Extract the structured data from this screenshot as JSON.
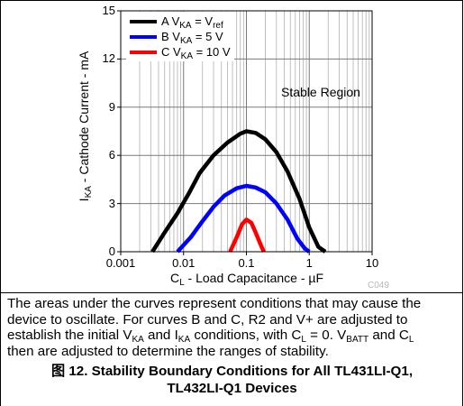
{
  "chart_data": {
    "type": "line",
    "xscale": "log",
    "xlim": [
      0.001,
      10
    ],
    "ylim": [
      0,
      15
    ],
    "grid": true,
    "legend_position": "top-left",
    "ylabel": {
      "main": "I",
      "sub": "KA",
      "rest": " - Cathode Current - mA"
    },
    "xlabel": {
      "main": "C",
      "sub": "L",
      "rest": " - Load Capacitance - µF"
    },
    "xticks": [
      {
        "value": 0.001,
        "label": "0.001"
      },
      {
        "value": 0.01,
        "label": "0.01"
      },
      {
        "value": 0.1,
        "label": "0.1"
      },
      {
        "value": 1,
        "label": "1"
      },
      {
        "value": 10,
        "label": "10"
      }
    ],
    "yticks": [
      {
        "value": 0,
        "label": "0"
      },
      {
        "value": 3,
        "label": "3"
      },
      {
        "value": 6,
        "label": "6"
      },
      {
        "value": 9,
        "label": "9"
      },
      {
        "value": 12,
        "label": "12"
      },
      {
        "value": 15,
        "label": "15"
      }
    ],
    "annotation": "Stable Region",
    "series": [
      {
        "name": "A V_KA = V_ref",
        "legend": {
          "prefix": "A V",
          "sub1": "KA",
          "mid": " = V",
          "sub2": "ref",
          "suffix": ""
        },
        "color": "#000000",
        "x": [
          0.0032,
          0.005,
          0.008,
          0.012,
          0.018,
          0.03,
          0.05,
          0.08,
          0.1,
          0.14,
          0.2,
          0.3,
          0.45,
          0.7,
          1.0,
          1.4,
          1.8
        ],
        "y": [
          0,
          1.2,
          2.4,
          3.6,
          4.9,
          6.0,
          6.8,
          7.35,
          7.5,
          7.4,
          7.0,
          6.2,
          5.0,
          3.3,
          1.5,
          0.3,
          0
        ]
      },
      {
        "name": "B V_KA = 5 V",
        "legend": {
          "prefix": "B V",
          "sub1": "KA",
          "mid": " = 5 V",
          "sub2": "",
          "suffix": ""
        },
        "color": "#0000ff",
        "x": [
          0.008,
          0.013,
          0.02,
          0.03,
          0.045,
          0.07,
          0.1,
          0.14,
          0.2,
          0.3,
          0.45,
          0.65,
          0.85,
          1.0
        ],
        "y": [
          0,
          0.9,
          1.9,
          2.8,
          3.5,
          3.95,
          4.1,
          4.0,
          3.7,
          3.0,
          2.0,
          0.8,
          0.2,
          0
        ]
      },
      {
        "name": "C V_KA = 10 V",
        "legend": {
          "prefix": "C V",
          "sub1": "KA",
          "mid": " = 10 V",
          "sub2": "",
          "suffix": ""
        },
        "color": "#ff0000",
        "x": [
          0.055,
          0.07,
          0.085,
          0.1,
          0.12,
          0.14,
          0.17,
          0.19
        ],
        "y": [
          0,
          0.9,
          1.7,
          2.0,
          1.8,
          1.2,
          0.4,
          0
        ]
      }
    ]
  },
  "caption": {
    "line1": "The areas under the curves represent conditions that may cause the",
    "line2": "device to oscillate. For curves B and C, R2 and V+ are adjusted to",
    "line3_a": "establish the initial V",
    "line3_sub1": "KA",
    "line3_b": " and I",
    "line3_sub2": "KA",
    "line3_c": " conditions, with C",
    "line3_sub3": "L",
    "line3_d": " = 0. V",
    "line3_sub4": "BATT",
    "line3_e": " and C",
    "line3_sub5": "L",
    "line4": "then are adjusted to determine the ranges of stability."
  },
  "figure_title": {
    "line1": "图 12. Stability Boundary Conditions for All TL431LI-Q1,",
    "line2": "TL432LI-Q1 Devices"
  },
  "watermark": "C049"
}
